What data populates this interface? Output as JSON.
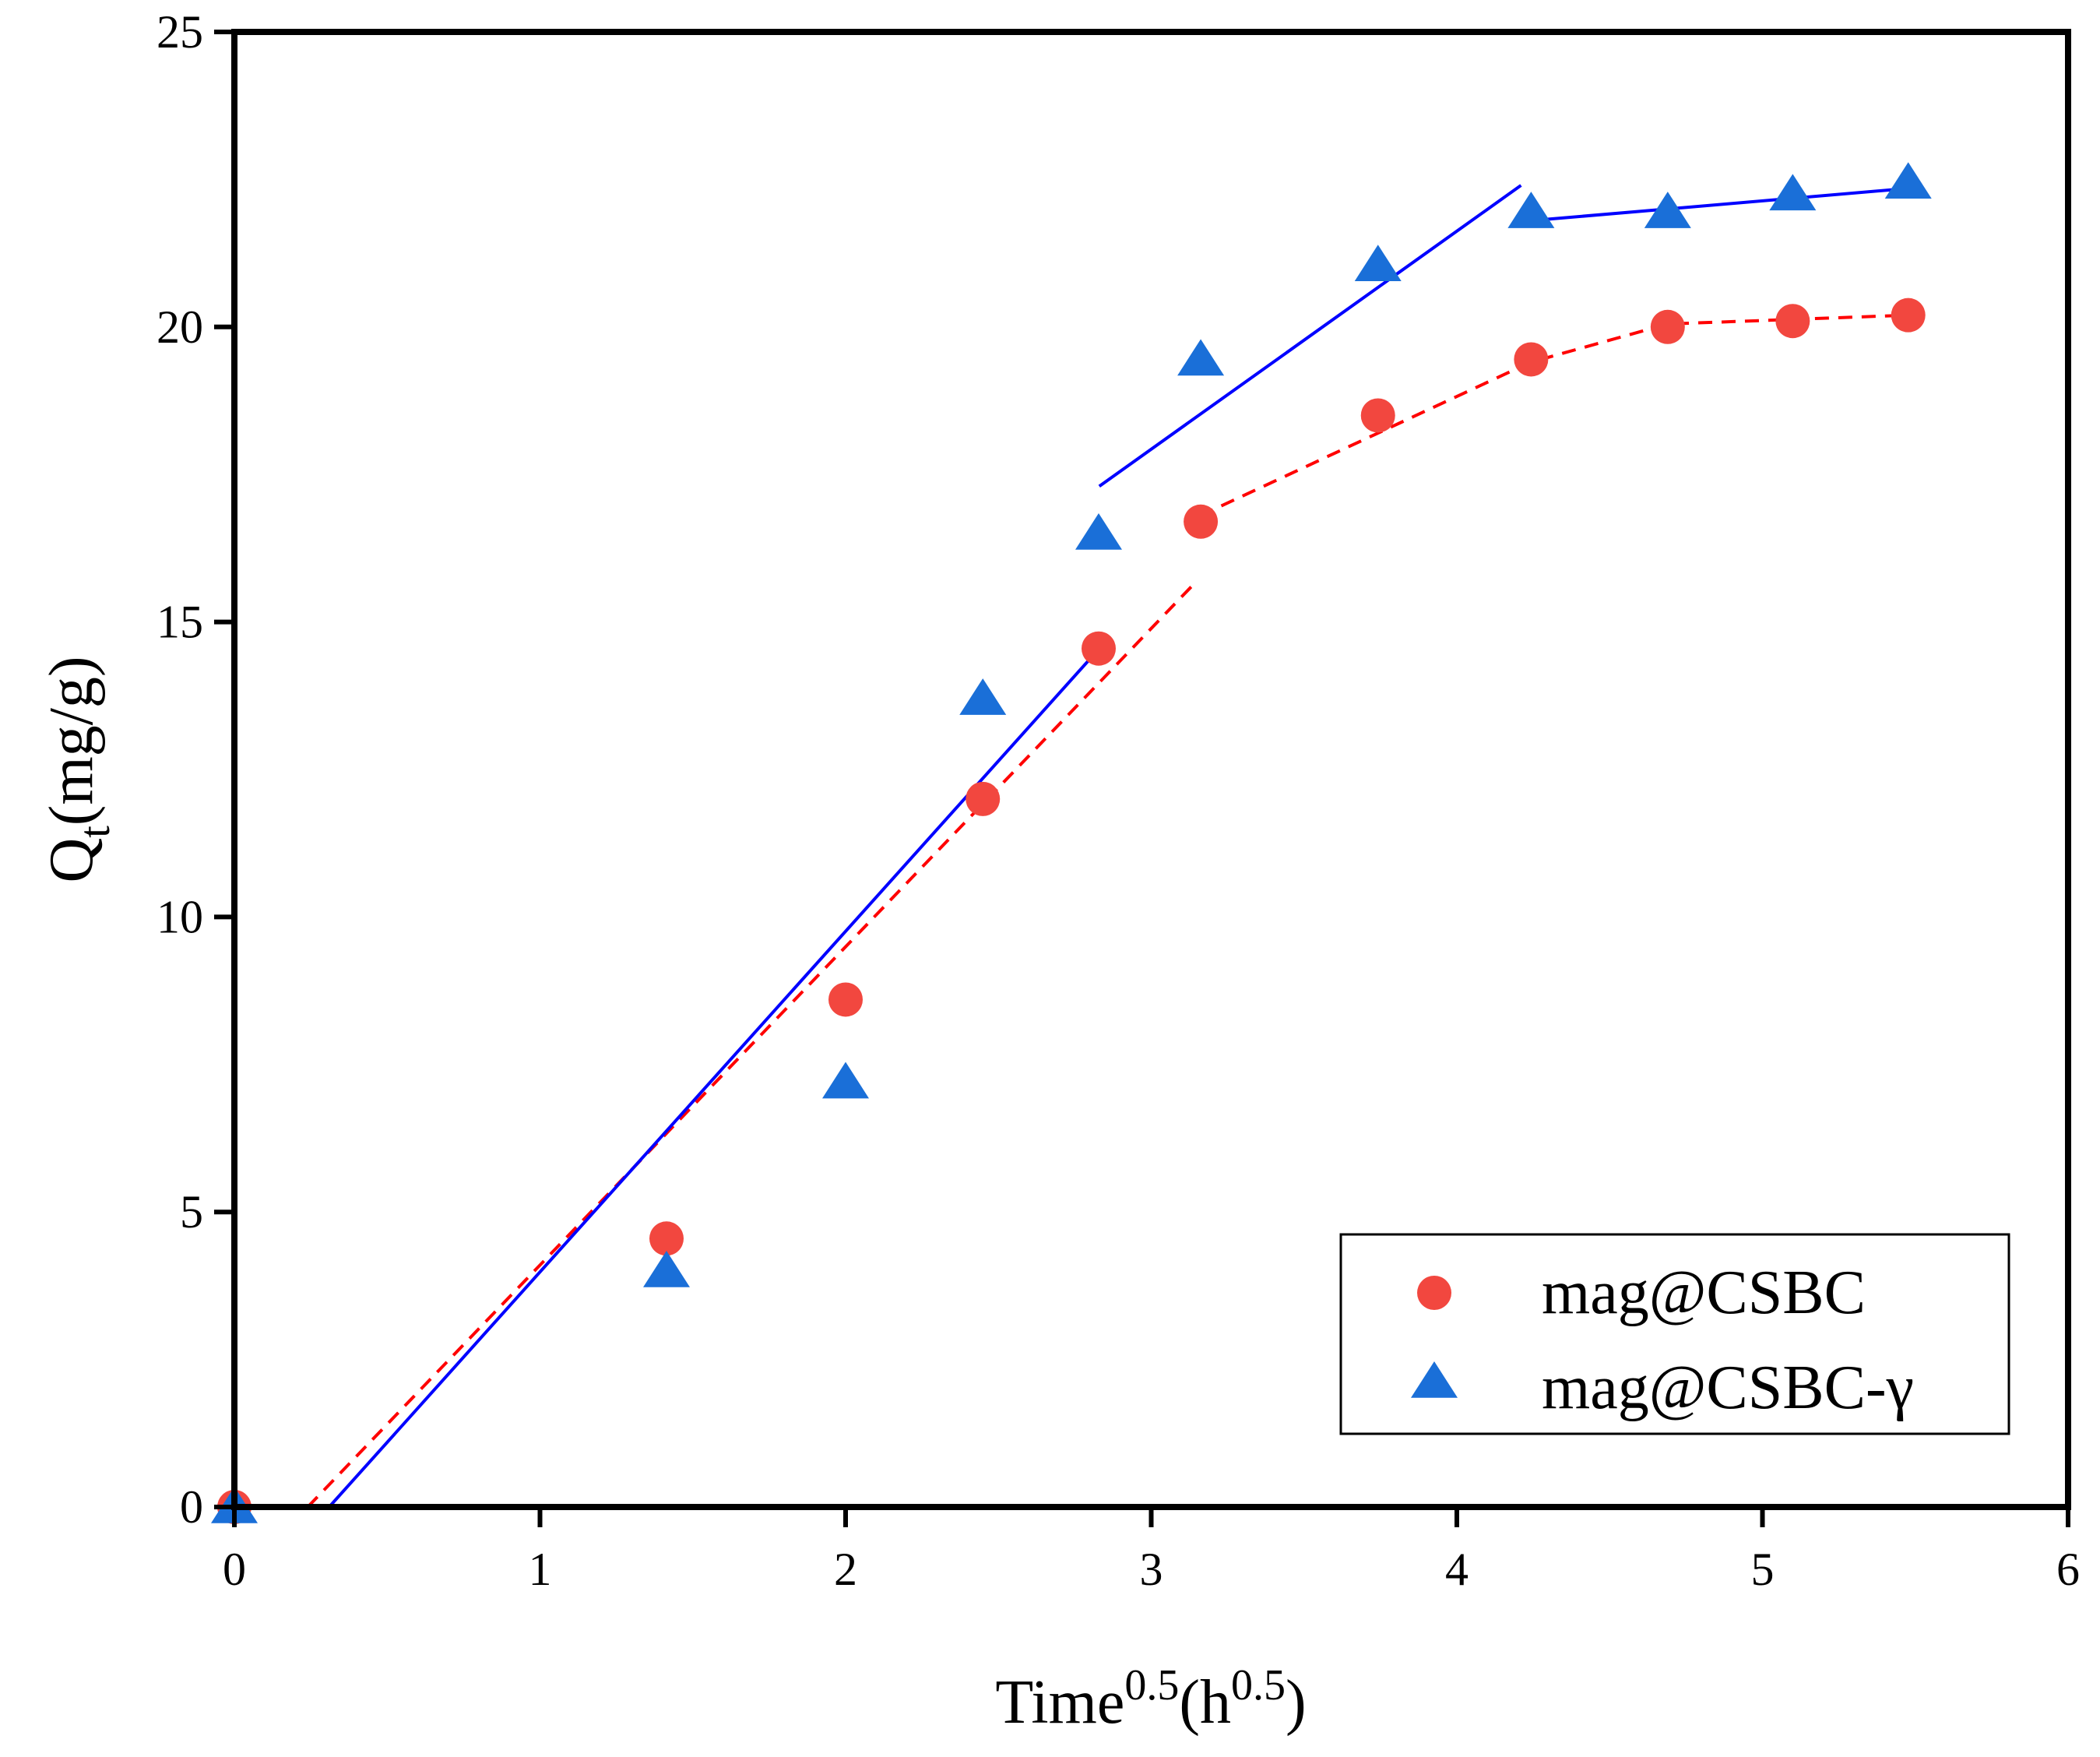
{
  "chart_data": {
    "type": "scatter",
    "title": "",
    "xlabel": {
      "main": "Time",
      "sup1": "0.5",
      "open": "(h",
      "sup2": "0.5",
      "close": ")"
    },
    "ylabel": {
      "main": "Q",
      "sub": "t",
      "rest": "(mg/g)"
    },
    "xlim": [
      0,
      6
    ],
    "ylim": [
      0,
      25
    ],
    "x_ticks": [
      0,
      1,
      2,
      3,
      4,
      5,
      6
    ],
    "x_tick_labels": [
      "0",
      "1",
      "2",
      "3",
      "4",
      "5",
      "6"
    ],
    "y_ticks": [
      0,
      5,
      10,
      15,
      20,
      25
    ],
    "y_tick_labels": [
      "0",
      "5",
      "10",
      "15",
      "20",
      "25"
    ],
    "grid": false,
    "legend_position": "bottom-right",
    "series": [
      {
        "name": "mag@CSBC",
        "marker": "circle",
        "color": "#f2473f",
        "points": [
          [
            0,
            0
          ],
          [
            1.414,
            4.55
          ],
          [
            2.0,
            8.6
          ],
          [
            2.449,
            12.0
          ],
          [
            2.828,
            14.55
          ],
          [
            3.162,
            16.7
          ],
          [
            3.742,
            18.5
          ],
          [
            4.243,
            19.45
          ],
          [
            4.69,
            20.0
          ],
          [
            5.099,
            20.1
          ],
          [
            5.477,
            20.2
          ]
        ]
      },
      {
        "name": "mag@CSBC-γ",
        "marker": "triangle",
        "color": "#1a6fd8",
        "points": [
          [
            0,
            0
          ],
          [
            1.414,
            4.0
          ],
          [
            2.0,
            7.2
          ],
          [
            2.449,
            13.7
          ],
          [
            2.828,
            16.5
          ],
          [
            3.162,
            19.45
          ],
          [
            3.742,
            21.05
          ],
          [
            4.243,
            21.95
          ],
          [
            4.69,
            21.95
          ],
          [
            5.099,
            22.25
          ],
          [
            5.477,
            22.45
          ]
        ]
      }
    ],
    "fit_lines": [
      {
        "series": "mag@CSBC",
        "style": "dashed",
        "color": "#ff0000",
        "segments": [
          [
            [
              0.24,
              0
            ],
            [
              3.15,
              15.7
            ]
          ],
          [
            [
              3.16,
              16.8
            ],
            [
              4.24,
              19.4
            ],
            [
              4.69,
              20.05
            ],
            [
              5.48,
              20.2
            ]
          ]
        ]
      },
      {
        "series": "mag@CSBC-γ",
        "style": "solid",
        "color": "#0000ff",
        "segments": [
          [
            [
              0.31,
              0
            ],
            [
              2.83,
              14.55
            ]
          ],
          [
            [
              2.83,
              17.3
            ],
            [
              4.21,
              22.4
            ]
          ],
          [
            [
              4.24,
              21.8
            ],
            [
              5.48,
              22.35
            ]
          ]
        ]
      }
    ]
  }
}
